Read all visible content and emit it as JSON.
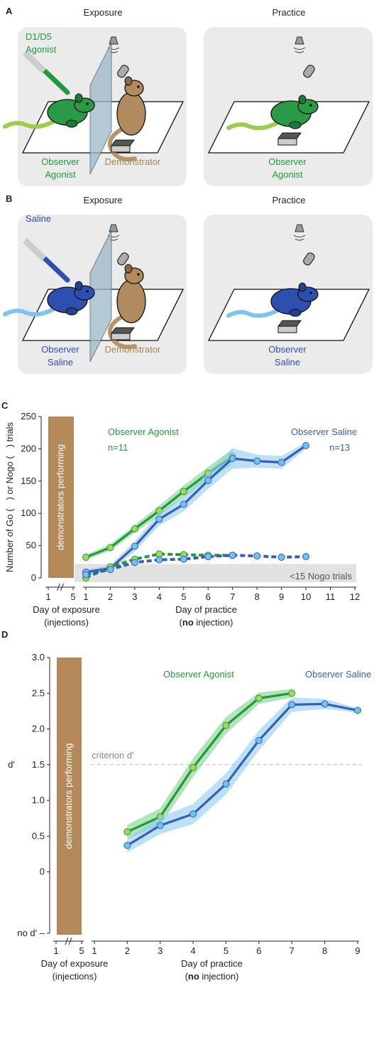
{
  "panels": [
    {
      "letter": "A",
      "exposure": {
        "title": "Exposure",
        "drug": [
          "D1/D5",
          "Agonist"
        ],
        "observer": [
          "Observer",
          "Agonist"
        ],
        "demonstrator": "Demonstrator"
      },
      "practice": {
        "title": "Practice",
        "observer": [
          "Observer",
          "Agonist"
        ]
      }
    },
    {
      "letter": "B",
      "exposure": {
        "title": "Exposure",
        "drug": [
          "Saline"
        ],
        "observer": [
          "Observer",
          "Saline"
        ],
        "demonstrator": "Demonstrator"
      },
      "practice": {
        "title": "Practice",
        "observer": [
          "Observer",
          "Saline"
        ]
      }
    }
  ],
  "chart_data": [
    {
      "type": "line",
      "letter": "C",
      "y_label": [
        "Number of Go (",
        ") or Nogo (",
        ") trials"
      ],
      "x_label": [
        "Day of practice",
        "(",
        "no",
        " injection)"
      ],
      "exposure": {
        "label": "demonstrators performing",
        "xticks": [
          1,
          5
        ],
        "x_label": [
          "Day of exposure",
          "(injections)"
        ]
      },
      "threshold": {
        "value": 15,
        "label": "<15 Nogo trials"
      },
      "xlim": [
        1,
        12
      ],
      "xticks": [
        1,
        2,
        3,
        4,
        5,
        6,
        7,
        8,
        9,
        10,
        11,
        12
      ],
      "ylim": [
        0,
        250
      ],
      "yticks": [
        0,
        50,
        100,
        150,
        200,
        250
      ],
      "series": [
        {
          "name": "Observer Agonist",
          "n_label": "n=11",
          "color": "#1f9a3c",
          "marker": "#a8d45c",
          "band": "#7fd08a",
          "style": "solid",
          "x": [
            1,
            2,
            3,
            4,
            5,
            6,
            7
          ],
          "values": [
            32,
            47,
            76,
            104,
            134,
            162,
            188
          ],
          "errors": [
            4,
            5,
            6,
            8,
            9,
            10,
            12
          ]
        },
        {
          "name": "Observer Saline",
          "n_label": "n=13",
          "color": "#3a5cb4",
          "marker": "#72c2ef",
          "band": "#8fcdf0",
          "style": "solid",
          "x": [
            1,
            2,
            3,
            4,
            5,
            6,
            7,
            8,
            9,
            10
          ],
          "values": [
            9,
            15,
            49,
            91,
            114,
            151,
            185,
            181,
            179,
            205
          ],
          "errors": [
            4,
            5,
            8,
            10,
            11,
            13,
            16,
            10,
            10,
            5
          ]
        },
        {
          "color": "#1f9a3c",
          "marker": "#a8d45c",
          "style": "dashed",
          "x": [
            1,
            2,
            3,
            4,
            5,
            6,
            7
          ],
          "values": [
            0,
            17,
            29,
            37,
            36,
            35,
            35
          ]
        },
        {
          "color": "#3a5cb4",
          "marker": "#72c2ef",
          "style": "dashed",
          "x": [
            1,
            2,
            3,
            4,
            5,
            6,
            7,
            8,
            9,
            10
          ],
          "values": [
            5,
            13,
            24,
            28,
            29,
            33,
            35,
            34,
            32,
            33
          ]
        }
      ]
    },
    {
      "type": "line",
      "letter": "D",
      "y_label": [
        "d'"
      ],
      "x_label": [
        "Day of practice",
        "(",
        "no",
        " injection)"
      ],
      "exposure": {
        "label": "demonstrators performing",
        "xticks": [
          1,
          5
        ],
        "x_label": [
          "Day of exposure",
          "(injections)"
        ]
      },
      "criterion": {
        "value": 1.5,
        "label": "criterion d'"
      },
      "xlim": [
        1,
        9
      ],
      "xticks": [
        1,
        2,
        3,
        4,
        5,
        6,
        7,
        8,
        9
      ],
      "ylim": [
        -0.86,
        3
      ],
      "yticks": [
        {
          "value": -0.86,
          "label": "no d' –"
        },
        0,
        0.5,
        {
          "value": 1,
          "label": "1.0"
        },
        1.5,
        {
          "value": 2,
          "label": "2.0"
        },
        2.5,
        {
          "value": 3,
          "label": "3.0"
        }
      ],
      "series": [
        {
          "name": "Observer Agonist",
          "color": "#1f9a3c",
          "marker": "#a8d45c",
          "band": "#7fd08a",
          "style": "solid",
          "x": [
            2,
            3,
            4,
            5,
            6,
            7
          ],
          "values": [
            0.56,
            0.77,
            1.46,
            2.05,
            2.43,
            2.5
          ],
          "errors": [
            0.1,
            0.12,
            0.13,
            0.12,
            0.08,
            0.06
          ]
        },
        {
          "name": "Observer Saline",
          "color": "#3a5cb4",
          "marker": "#72c2ef",
          "band": "#8fcdf0",
          "style": "solid",
          "x": [
            2,
            3,
            4,
            5,
            6,
            7,
            8,
            9
          ],
          "values": [
            0.37,
            0.65,
            0.81,
            1.23,
            1.84,
            2.34,
            2.35,
            2.26
          ],
          "errors": [
            0.1,
            0.12,
            0.14,
            0.15,
            0.14,
            0.1,
            0.07,
            0.03
          ]
        }
      ]
    }
  ]
}
